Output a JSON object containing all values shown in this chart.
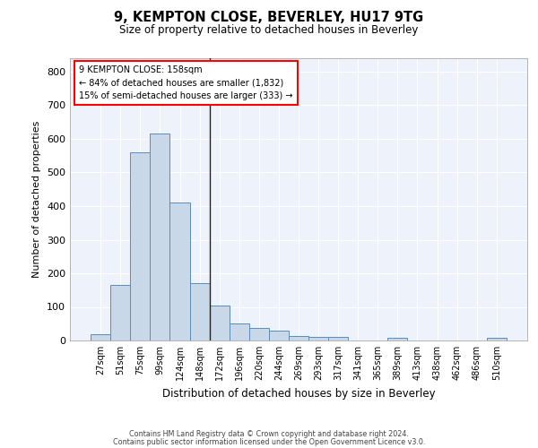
{
  "title": "9, KEMPTON CLOSE, BEVERLEY, HU17 9TG",
  "subtitle": "Size of property relative to detached houses in Beverley",
  "xlabel": "Distribution of detached houses by size in Beverley",
  "ylabel": "Number of detached properties",
  "bar_color": "#c8d8e8",
  "bar_edge_color": "#5b8db8",
  "background_color": "#eef2fb",
  "grid_color": "#ffffff",
  "categories": [
    "27sqm",
    "51sqm",
    "75sqm",
    "99sqm",
    "124sqm",
    "148sqm",
    "172sqm",
    "196sqm",
    "220sqm",
    "244sqm",
    "269sqm",
    "293sqm",
    "317sqm",
    "341sqm",
    "365sqm",
    "389sqm",
    "413sqm",
    "438sqm",
    "462sqm",
    "486sqm",
    "510sqm"
  ],
  "values": [
    20,
    165,
    560,
    615,
    410,
    170,
    103,
    52,
    38,
    30,
    14,
    12,
    10,
    0,
    0,
    8,
    0,
    0,
    0,
    0,
    7
  ],
  "ylim": [
    0,
    840
  ],
  "yticks": [
    0,
    100,
    200,
    300,
    400,
    500,
    600,
    700,
    800
  ],
  "annotation_line1": "9 KEMPTON CLOSE: 158sqm",
  "annotation_line2": "← 84% of detached houses are smaller (1,832)",
  "annotation_line3": "15% of semi-detached houses are larger (333) →",
  "property_line_x": 5.5,
  "footer_line1": "Contains HM Land Registry data © Crown copyright and database right 2024.",
  "footer_line2": "Contains public sector information licensed under the Open Government Licence v3.0."
}
